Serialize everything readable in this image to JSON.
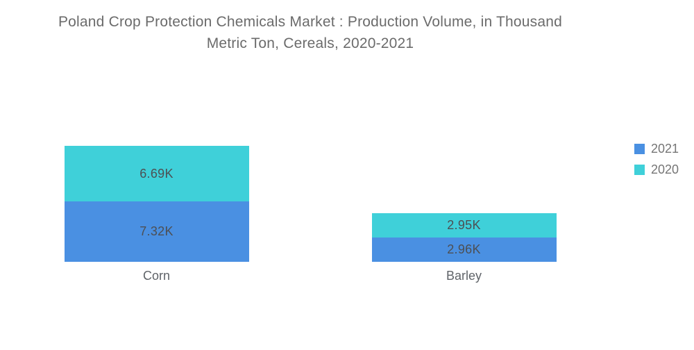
{
  "title": {
    "line1": "Poland Crop Protection Chemicals Market : Production Volume, in Thousand",
    "line2": "Metric Ton, Cereals, 2020-2021"
  },
  "legend": {
    "position": "right",
    "items": [
      {
        "label": "2021",
        "color": "#4a90e2"
      },
      {
        "label": "2020",
        "color": "#3fd0d9"
      }
    ]
  },
  "colors": {
    "series_2021": "#4a90e2",
    "series_2020": "#3fd0d9",
    "title_text": "#6b6b6b",
    "value_label_text": "#4d4f53",
    "category_label_text": "#5f6368",
    "legend_text": "#757575",
    "background": "#ffffff"
  },
  "chart_data": {
    "type": "bar",
    "subtype": "stacked-column",
    "title": "Poland Crop Protection Chemicals Market : Production Volume, in Thousand Metric Ton, Cereals, 2020-2021",
    "units": "Thousand Metric Ton",
    "categories": [
      "Corn",
      "Barley"
    ],
    "series": [
      {
        "name": "2020",
        "color": "#3fd0d9",
        "values": [
          6.69,
          2.95
        ],
        "labels": [
          "6.69K",
          "2.95K"
        ]
      },
      {
        "name": "2021",
        "color": "#4a90e2",
        "values": [
          7.32,
          2.96
        ],
        "labels": [
          "7.32K",
          "2.96K"
        ]
      }
    ],
    "stack_order_top_to_bottom": [
      "2020",
      "2021"
    ],
    "xlabel": "",
    "ylabel": "",
    "value_axis_visible": false,
    "grid": false,
    "legend_position": "right",
    "value_labels_inside_bars": true
  }
}
